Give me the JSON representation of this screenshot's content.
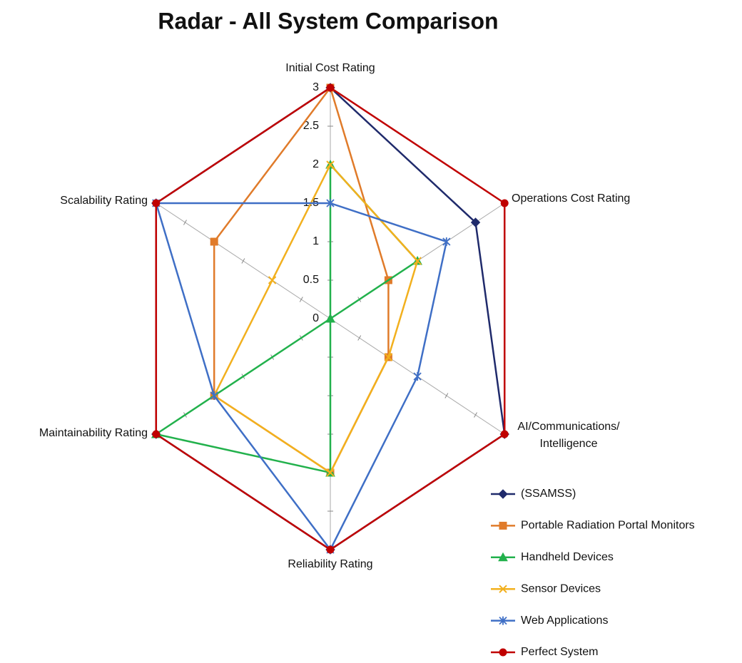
{
  "chart_data": {
    "type": "radar",
    "title": "Radar - All System Comparison",
    "categories": [
      "Initial Cost Rating",
      "Operations Cost Rating",
      "AI/Communications/ Intelligence",
      "Reliability Rating",
      "Maintainability Rating",
      "Scalability  Rating"
    ],
    "ylim": [
      0,
      3
    ],
    "yticks": [
      0,
      0.5,
      1,
      1.5,
      2,
      2.5,
      3
    ],
    "legend": "bottom-right",
    "series": [
      {
        "name": "(SSAMSS)",
        "color": "#1f2a6b",
        "marker": "diamond",
        "values": [
          3,
          2.5,
          3,
          3,
          3,
          3
        ]
      },
      {
        "name": "Portable Radiation Portal Monitors",
        "color": "#e07b2a",
        "marker": "square",
        "values": [
          3,
          1,
          1,
          2,
          2,
          2
        ]
      },
      {
        "name": "Handheld Devices",
        "color": "#22b14c",
        "marker": "triangle",
        "values": [
          2,
          1.5,
          0,
          2,
          3,
          0
        ]
      },
      {
        "name": "Sensor Devices",
        "color": "#f2b01e",
        "marker": "x",
        "values": [
          2,
          1.5,
          1,
          2,
          2,
          1
        ]
      },
      {
        "name": "Web Applications",
        "color": "#3f6fc6",
        "marker": "star",
        "values": [
          1.5,
          2,
          1.5,
          3,
          2,
          3
        ]
      },
      {
        "name": "Perfect System",
        "color": "#c00000",
        "marker": "circle",
        "values": [
          3,
          3,
          3,
          3,
          3,
          3
        ]
      }
    ]
  }
}
